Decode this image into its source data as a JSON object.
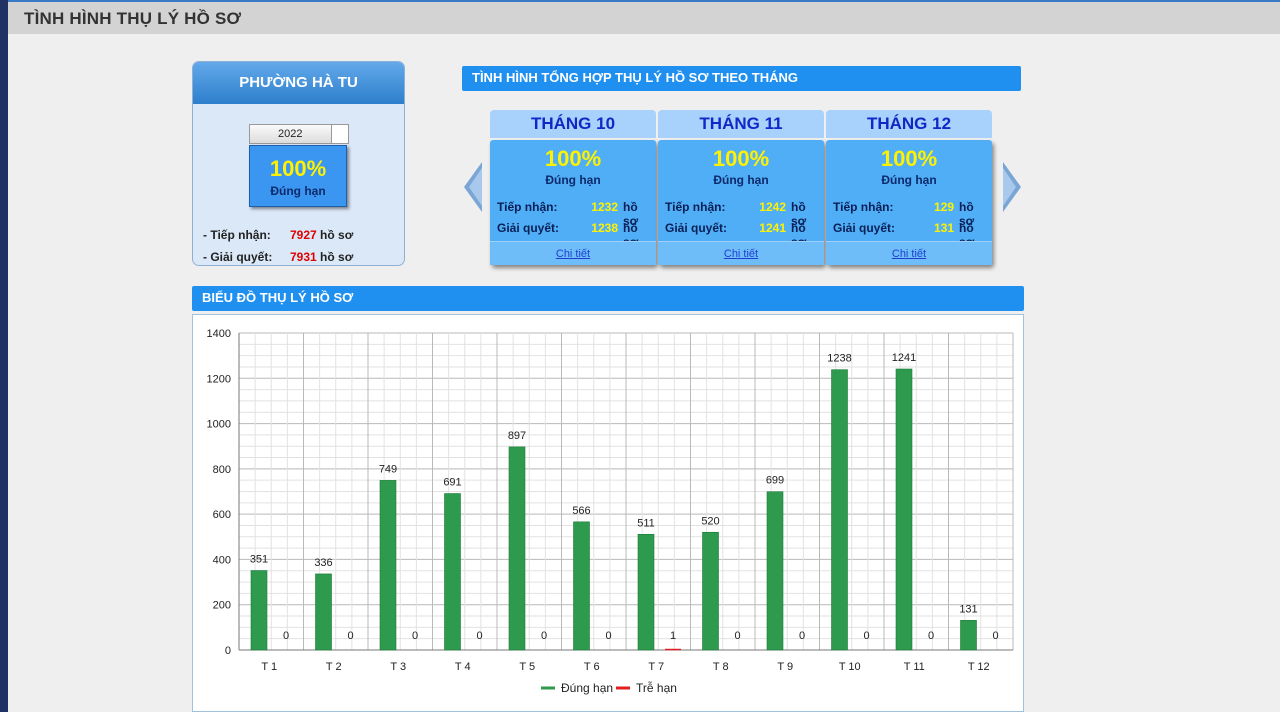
{
  "header": {
    "title": "TÌNH HÌNH THỤ LÝ HỒ SƠ"
  },
  "ward": {
    "name": "PHƯỜNG HÀ TU",
    "year": "2022",
    "percent": "100%",
    "status": "Đúng hạn",
    "received_label": "- Tiếp nhận:",
    "received_value": "7927",
    "resolved_label": "- Giải quyết:",
    "resolved_value": "7931",
    "unit": "hồ sơ"
  },
  "monthly": {
    "title": "TÌNH HÌNH TỔNG HỢP THỤ LÝ HỒ SƠ THEO THÁNG",
    "received_label": "Tiếp nhận:",
    "resolved_label": "Giải quyết:",
    "unit": "hồ sơ",
    "detail_label": "Chi tiết",
    "months": [
      {
        "name": "THÁNG 10",
        "percent": "100%",
        "status": "Đúng hạn",
        "received": "1232",
        "resolved": "1238"
      },
      {
        "name": "THÁNG 11",
        "percent": "100%",
        "status": "Đúng hạn",
        "received": "1242",
        "resolved": "1241"
      },
      {
        "name": "THÁNG 12",
        "percent": "100%",
        "status": "Đúng hạn",
        "received": "129",
        "resolved": "131"
      }
    ]
  },
  "chart_section": {
    "title": "BIỂU ĐỒ THỤ LÝ HỒ SƠ"
  },
  "icons": {
    "prev": "chevron-left-icon",
    "next": "chevron-right-icon"
  },
  "colors": {
    "on_time": "#2e9a4e",
    "late": "#e02020",
    "accent": "#1f8ff0"
  },
  "chart_data": {
    "type": "bar",
    "categories": [
      "T 1",
      "T 2",
      "T 3",
      "T 4",
      "T 5",
      "T 6",
      "T 7",
      "T 8",
      "T 9",
      "T 10",
      "T 11",
      "T 12"
    ],
    "series": [
      {
        "name": "Đúng hạn",
        "values": [
          351,
          336,
          749,
          691,
          897,
          566,
          511,
          520,
          699,
          1238,
          1241,
          131
        ]
      },
      {
        "name": "Trễ hạn",
        "values": [
          0,
          0,
          0,
          0,
          0,
          0,
          1,
          0,
          0,
          0,
          0,
          0
        ]
      }
    ],
    "ylim": [
      0,
      1400
    ],
    "yticks": [
      0,
      200,
      400,
      600,
      800,
      1000,
      1200,
      1400
    ],
    "grid": true,
    "legend": "bottom"
  }
}
